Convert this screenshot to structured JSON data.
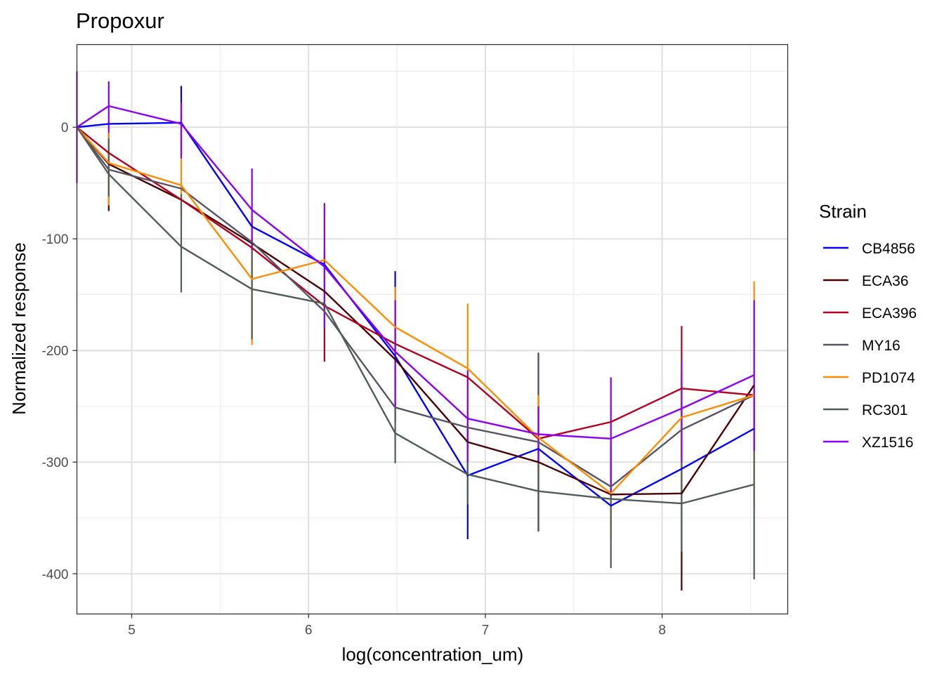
{
  "chart_data": {
    "type": "line",
    "title": "Propoxur",
    "xlabel": "log(concentration_um)",
    "ylabel": "Normalized response",
    "xlim": [
      4.69,
      8.71
    ],
    "ylim": [
      -436,
      74
    ],
    "x_ticks": [
      5,
      6,
      7,
      8
    ],
    "x_tick_labels": [
      "5",
      "6",
      "7",
      "8"
    ],
    "y_ticks": [
      0,
      -100,
      -200,
      -300,
      -400
    ],
    "y_tick_labels": [
      "0",
      "-100",
      "-200",
      "-300",
      "-400"
    ],
    "x": [
      4.69,
      4.87,
      5.28,
      5.68,
      6.09,
      6.49,
      6.9,
      7.3,
      7.71,
      8.11,
      8.52
    ],
    "grid": true,
    "legend": {
      "title": "Strain",
      "position": "right"
    },
    "series": [
      {
        "name": "CB4856",
        "color": "#0000ff",
        "values": [
          0,
          3,
          4,
          -89,
          -123,
          -205,
          -312,
          -288,
          -339,
          -306,
          -270
        ],
        "err_low": [
          0,
          3,
          -25,
          -89,
          -123,
          -264,
          -369,
          -288,
          -339,
          -306,
          -270
        ],
        "err_high": [
          0,
          3,
          37,
          -89,
          -123,
          -129,
          -265,
          -288,
          -339,
          -306,
          -270
        ]
      },
      {
        "name": "ECA36",
        "color": "#4b0000",
        "values": [
          0,
          -33,
          -65,
          -104,
          -147,
          -208,
          -282,
          -300,
          -329,
          -328,
          -231
        ],
        "err_low": [
          0,
          -75,
          -65,
          -104,
          -147,
          -208,
          -282,
          -362,
          -329,
          -415,
          -231
        ],
        "err_high": [
          0,
          -5,
          -65,
          -104,
          -147,
          -208,
          -282,
          -202,
          -329,
          -300,
          -231
        ]
      },
      {
        "name": "ECA396",
        "color": "#b4001e",
        "values": [
          0,
          -23,
          -65,
          -108,
          -160,
          -194,
          -224,
          -279,
          -264,
          -234,
          -240
        ],
        "err_low": [
          0,
          -23,
          -65,
          -108,
          -210,
          -194,
          -224,
          -279,
          -264,
          -290,
          -240
        ],
        "err_high": [
          0,
          -23,
          -65,
          -108,
          -110,
          -194,
          -224,
          -279,
          -264,
          -178,
          -240
        ]
      },
      {
        "name": "MY16",
        "color": "#555566",
        "values": [
          0,
          -38,
          -55,
          -103,
          -165,
          -251,
          -269,
          -282,
          -322,
          -271,
          -240
        ],
        "err_low": [
          0,
          -38,
          -55,
          -103,
          -165,
          -251,
          -269,
          -362,
          -322,
          -271,
          -240
        ],
        "err_high": [
          0,
          -38,
          -55,
          -103,
          -165,
          -251,
          -269,
          -202,
          -322,
          -271,
          -240
        ]
      },
      {
        "name": "PD1074",
        "color": "#ff8c00",
        "values": [
          0,
          -32,
          -52,
          -136,
          -119,
          -179,
          -216,
          -278,
          -328,
          -260,
          -240
        ],
        "err_low": [
          0,
          -70,
          -80,
          -195,
          -119,
          -215,
          -270,
          -310,
          -370,
          -300,
          -340
        ],
        "err_high": [
          0,
          -5,
          -22,
          -80,
          -119,
          -143,
          -158,
          -240,
          -285,
          -220,
          -138
        ]
      },
      {
        "name": "RC301",
        "color": "#4f5d57",
        "values": [
          0,
          -42,
          -107,
          -145,
          -158,
          -274,
          -311,
          -326,
          -333,
          -337,
          -320
        ],
        "err_low": [
          0,
          -62,
          -148,
          -190,
          -158,
          -301,
          -338,
          -362,
          -395,
          -380,
          -405
        ],
        "err_high": [
          0,
          -10,
          -60,
          -100,
          -158,
          -246,
          -280,
          -290,
          -280,
          -290,
          -235
        ]
      },
      {
        "name": "XZ1516",
        "color": "#8b00ee",
        "values": [
          0,
          19,
          3,
          -74,
          -125,
          -201,
          -261,
          -275,
          -279,
          -252,
          -222
        ],
        "err_low": [
          -50,
          -5,
          -28,
          -110,
          -180,
          -250,
          -300,
          -300,
          -330,
          -300,
          -290
        ],
        "err_high": [
          50,
          41,
          22,
          -37,
          -68,
          -155,
          -218,
          -250,
          -224,
          -210,
          -155
        ]
      }
    ]
  }
}
